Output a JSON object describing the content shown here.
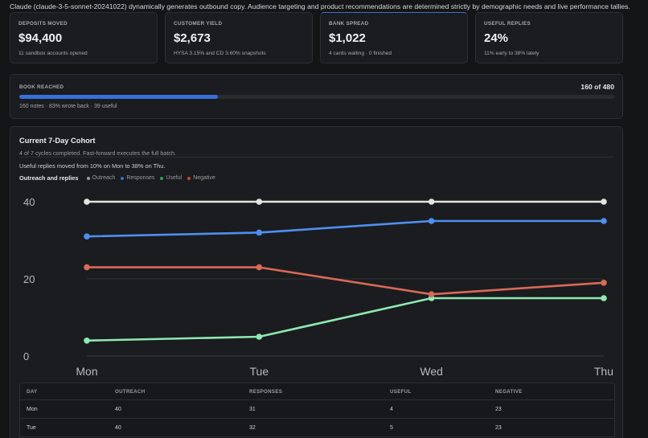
{
  "intro": "Claude (claude-3-5-sonnet-20241022) dynamically generates outbound copy. Audience targeting and product recommendations are determined strictly by demographic needs and live performance tallies.",
  "stats": [
    {
      "label": "DEPOSITS MOVED",
      "value": "$94,400",
      "sub": "11 sandbox accounts opened"
    },
    {
      "label": "CUSTOMER YIELD",
      "value": "$2,673",
      "sub": "HYSA 3.15% and CD 3.60% snapshots"
    },
    {
      "label": "BANK SPREAD",
      "value": "$1,022",
      "sub": "4 cards waiting · 0 finished"
    },
    {
      "label": "USEFUL REPLIES",
      "value": "24%",
      "sub": "11% early to 38% lately"
    }
  ],
  "book": {
    "label": "BOOK REACHED",
    "count": "160 of 480",
    "progress": 0.3333,
    "sub": "160 notes · 83% wrote back · 39 useful"
  },
  "cohort": {
    "title": "Current 7-Day Cohort",
    "desc": "4 of 7 cycles completed. Fast-forward executes the full batch.",
    "note": "Useful replies moved from 10% on Mon to 38% on Thu.",
    "legend_title": "Outreach and replies"
  },
  "chart_data": {
    "type": "line",
    "x": [
      "Mon",
      "Tue",
      "Wed",
      "Thu"
    ],
    "ylim": [
      0,
      40
    ],
    "yticks": [
      "0",
      "20",
      "40"
    ],
    "series": [
      {
        "name": "Outreach",
        "values": [
          40,
          40,
          40,
          40
        ],
        "color": "#e4e4e0"
      },
      {
        "name": "Responses",
        "values": [
          31,
          32,
          35,
          35
        ],
        "color": "#4f8ff0"
      },
      {
        "name": "Useful",
        "values": [
          4,
          5,
          15,
          15
        ],
        "color": "#8ee9b2"
      },
      {
        "name": "Negative",
        "values": [
          23,
          23,
          16,
          19
        ],
        "color": "#d9695a"
      }
    ],
    "legend_colors": {
      "Outreach": "#9a9ca1",
      "Responses": "#3b6fd1",
      "Useful": "#2f9e5b",
      "Negative": "#c9463a"
    }
  },
  "table": {
    "headers": [
      "DAY",
      "OUTREACH",
      "RESPONSES",
      "USEFUL",
      "NEGATIVE"
    ],
    "rows": [
      [
        "Mon",
        "40",
        "31",
        "4",
        "23"
      ],
      [
        "Tue",
        "40",
        "32",
        "5",
        "23"
      ]
    ]
  }
}
